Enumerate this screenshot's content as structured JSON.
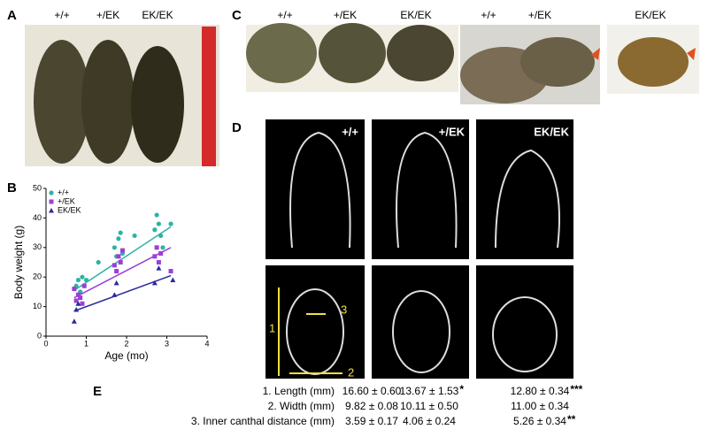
{
  "panel_labels": [
    "A",
    "B",
    "C",
    "D",
    "E"
  ],
  "photo_a": {
    "labels": [
      "+/+",
      "+/EK",
      "EK/EK"
    ]
  },
  "photo_c": {
    "labels": [
      "+/+",
      "+/EK",
      "EK/EK",
      "+/+",
      "+/EK",
      "EK/EK"
    ]
  },
  "ct": {
    "labels": [
      "+/+",
      "+/EK",
      "EK/EK"
    ],
    "measure_labels": [
      "1",
      "3",
      "2"
    ]
  },
  "table": {
    "rows": [
      {
        "label": "1. Length (mm)",
        "values": [
          "16.60 ± 0.60",
          "13.67 ± 1.53",
          "12.80 ± 0.34"
        ],
        "marks": {
          "1": "*",
          "2": "***"
        }
      },
      {
        "label": "2. Width (mm)",
        "values": [
          "9.82 ± 0.08",
          "10.11 ± 0.50",
          "11.00 ± 0.34"
        ]
      },
      {
        "label": "3. Inner canthal distance (mm)",
        "values": [
          "3.59 ± 0.17",
          "4.06 ± 0.24",
          "5.26 ± 0.34"
        ],
        "marks": {
          "2": "**"
        }
      }
    ]
  },
  "chart_data": {
    "type": "scatter",
    "xlabel": "Age (mo)",
    "ylabel": "Body weight (g)",
    "xlim": [
      0,
      4
    ],
    "ylim": [
      0,
      50
    ],
    "xticks": [
      0,
      1,
      2,
      3,
      4
    ],
    "yticks": [
      0,
      10,
      20,
      30,
      40,
      50
    ],
    "legend": "upper left",
    "series": [
      {
        "name": "+/+",
        "color": "#2db3a6",
        "marker": "circle",
        "x": [
          0.75,
          0.8,
          0.85,
          0.9,
          1.0,
          1.3,
          1.7,
          1.75,
          1.8,
          1.85,
          1.9,
          2.2,
          2.7,
          2.75,
          2.8,
          2.85,
          2.9,
          3.1
        ],
        "values": [
          17,
          19,
          15,
          20,
          19,
          25,
          30,
          27,
          33,
          35,
          28,
          34,
          36,
          41,
          38,
          34,
          30,
          38
        ],
        "fit_x": [
          0.7,
          3.1
        ],
        "fit_values": [
          15.5,
          37
        ]
      },
      {
        "name": "+/EK",
        "color": "#9b3fd6",
        "marker": "square",
        "x": [
          0.7,
          0.75,
          0.8,
          0.85,
          0.9,
          0.95,
          1.7,
          1.75,
          1.8,
          1.85,
          1.9,
          2.7,
          2.75,
          2.8,
          2.85,
          3.1
        ],
        "values": [
          16,
          12,
          14,
          13,
          11,
          17,
          24,
          22,
          27,
          25,
          29,
          27,
          30,
          25,
          28,
          22
        ],
        "fit_x": [
          0.7,
          3.1
        ],
        "fit_values": [
          13,
          30
        ]
      },
      {
        "name": "EK/EK",
        "color": "#2a2a9c",
        "marker": "triangle",
        "x": [
          0.7,
          0.75,
          0.8,
          1.7,
          1.75,
          2.7,
          2.8,
          3.15
        ],
        "values": [
          5,
          9,
          11,
          14,
          18,
          18,
          23,
          19
        ],
        "fit_x": [
          0.7,
          3.1
        ],
        "fit_values": [
          8.5,
          20.5
        ]
      }
    ]
  }
}
